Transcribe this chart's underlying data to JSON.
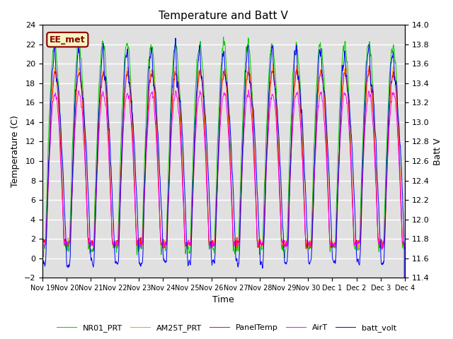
{
  "title": "Temperature and Batt V",
  "xlabel": "Time",
  "ylabel_left": "Temperature (C)",
  "ylabel_right": "Batt V",
  "ylim_left": [
    -2,
    24
  ],
  "ylim_right": [
    11.4,
    14.0
  ],
  "yticks_left": [
    -2,
    0,
    2,
    4,
    6,
    8,
    10,
    12,
    14,
    16,
    18,
    20,
    22,
    24
  ],
  "yticks_right": [
    11.4,
    11.6,
    11.8,
    12.0,
    12.2,
    12.4,
    12.6,
    12.8,
    13.0,
    13.2,
    13.4,
    13.6,
    13.8,
    14.0
  ],
  "xtick_positions": [
    0,
    1,
    2,
    3,
    4,
    5,
    6,
    7,
    8,
    9,
    10,
    11,
    12,
    13,
    14,
    15
  ],
  "xtick_labels": [
    "Nov 19",
    "Nov 20",
    "Nov 21",
    "Nov 22",
    "Nov 23",
    "Nov 24",
    "Nov 25",
    "Nov 26",
    "Nov 27",
    "Nov 28",
    "Nov 29",
    "Nov 30",
    "Dec 1",
    "Dec 2",
    "Dec 3",
    "Dec 4"
  ],
  "legend_labels": [
    "PanelTemp",
    "AirT",
    "NR01_PRT",
    "AM25T_PRT",
    "batt_volt"
  ],
  "legend_colors": [
    "#ff0000",
    "#ff00ff",
    "#00cc00",
    "#ff9900",
    "#0000ff"
  ],
  "watermark_text": "EE_met",
  "watermark_color": "#8b0000",
  "background_color": "#e0e0e0",
  "n_days": 15,
  "n_points_per_day": 96
}
